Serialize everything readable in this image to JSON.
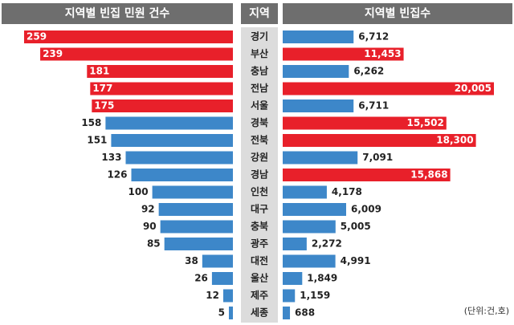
{
  "chart_data": {
    "type": "butterfly",
    "center_title": "지역",
    "unit_note": "(단위:건,호)",
    "categories": [
      "경기",
      "부산",
      "충남",
      "전남",
      "서울",
      "경북",
      "전북",
      "강원",
      "경남",
      "인천",
      "대구",
      "충북",
      "광주",
      "대전",
      "울산",
      "제주",
      "세종"
    ],
    "series": [
      {
        "name": "지역별 빈집 민원 건수",
        "values": [
          259,
          239,
          181,
          177,
          175,
          158,
          151,
          133,
          126,
          100,
          92,
          90,
          85,
          38,
          26,
          12,
          5
        ],
        "colors": [
          "#e8202a",
          "#e8202a",
          "#e8202a",
          "#e8202a",
          "#e8202a",
          "#3d87c9",
          "#3d87c9",
          "#3d87c9",
          "#3d87c9",
          "#3d87c9",
          "#3d87c9",
          "#3d87c9",
          "#3d87c9",
          "#3d87c9",
          "#3d87c9",
          "#3d87c9",
          "#3d87c9"
        ]
      },
      {
        "name": "지역별 빈집수",
        "values": [
          6712,
          11453,
          6262,
          20005,
          6711,
          15502,
          18300,
          7091,
          15868,
          4178,
          6009,
          5005,
          2272,
          4991,
          1849,
          1159,
          688
        ],
        "value_labels": [
          "6,712",
          "11,453",
          "6,262",
          "20,005",
          "6,711",
          "15,502",
          "18,300",
          "7,091",
          "15,868",
          "4,178",
          "6,009",
          "5,005",
          "2,272",
          "4,991",
          "1,849",
          "1,159",
          "688"
        ],
        "colors": [
          "#3d87c9",
          "#e8202a",
          "#3d87c9",
          "#e8202a",
          "#3d87c9",
          "#e8202a",
          "#e8202a",
          "#3d87c9",
          "#e8202a",
          "#3d87c9",
          "#3d87c9",
          "#3d87c9",
          "#3d87c9",
          "#3d87c9",
          "#3d87c9",
          "#3d87c9",
          "#3d87c9"
        ]
      }
    ]
  }
}
